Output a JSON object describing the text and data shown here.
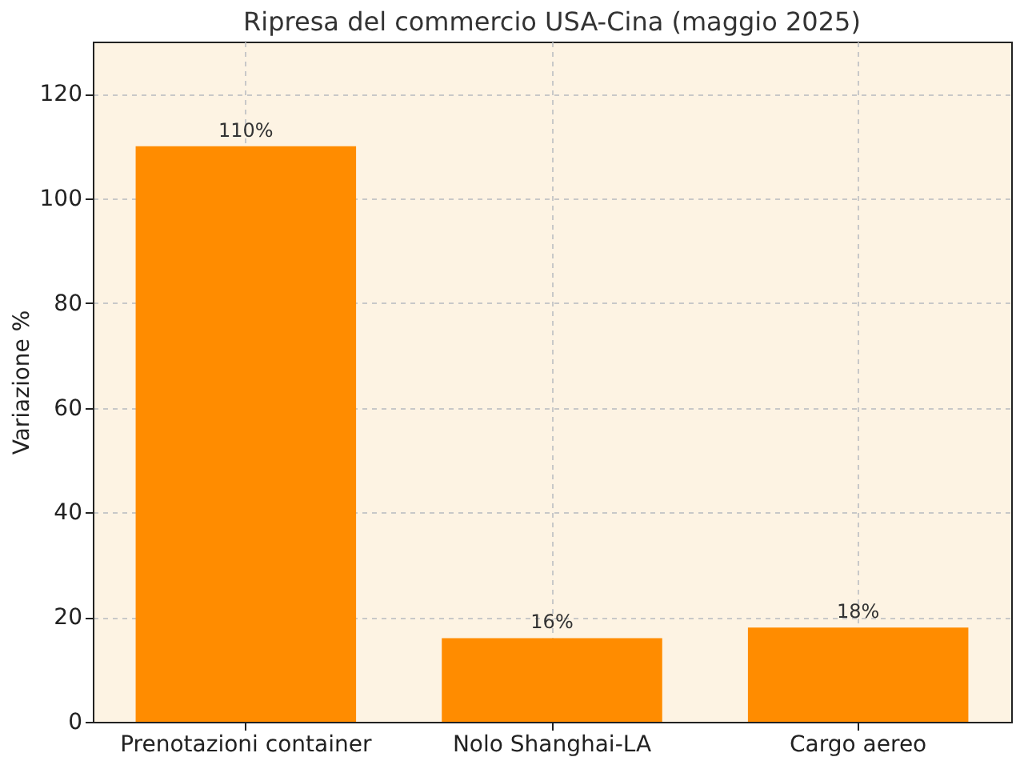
{
  "chart_data": {
    "type": "bar",
    "title": "Ripresa del commercio USA-Cina (maggio 2025)",
    "ylabel": "Variazione %",
    "categories": [
      "Prenotazioni container",
      "Nolo Shanghai-LA",
      "Cargo aereo"
    ],
    "values": [
      110,
      16,
      18
    ],
    "value_labels": [
      "110%",
      "16%",
      "18%"
    ],
    "color": "#ff8c00",
    "ylim": [
      0,
      130
    ],
    "yticks": [
      0,
      20,
      40,
      60,
      80,
      100,
      120
    ],
    "grid": true
  }
}
